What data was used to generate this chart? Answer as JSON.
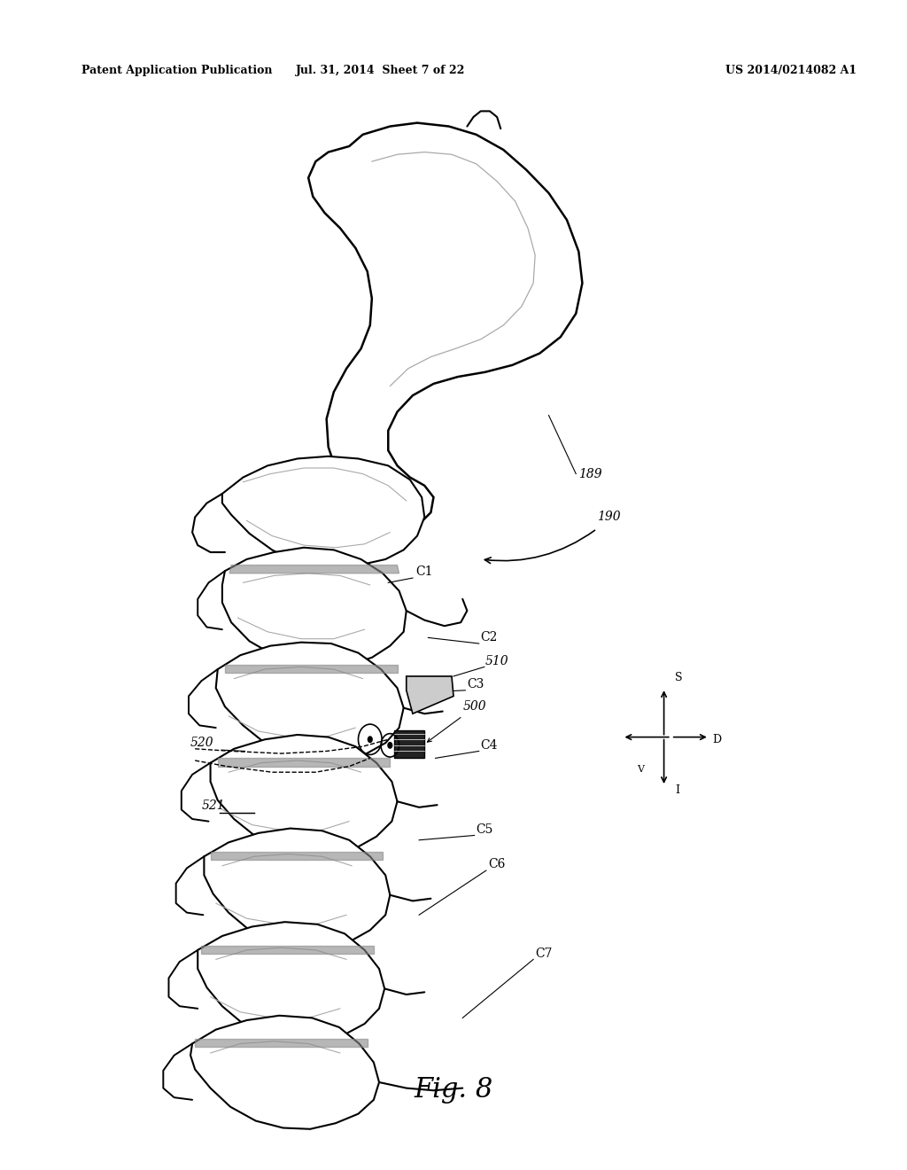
{
  "header_left": "Patent Application Publication",
  "header_mid": "Jul. 31, 2014  Sheet 7 of 22",
  "header_right": "US 2014/0214082 A1",
  "fig_label": "Fig. 8",
  "bg_color": "#ffffff",
  "line_color": "#000000",
  "gray_color": "#aaaaaa"
}
